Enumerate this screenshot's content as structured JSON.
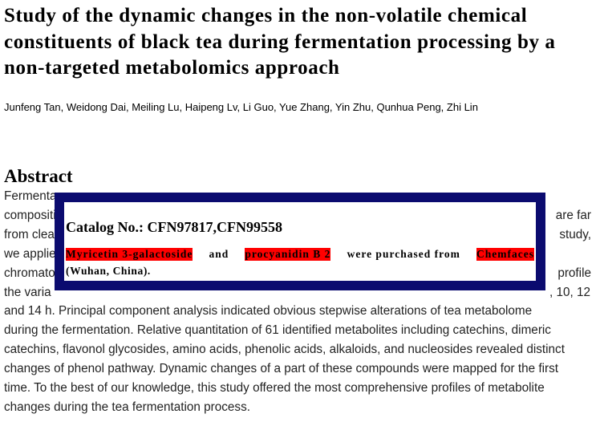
{
  "header": {
    "title_lines": [
      "Study of the dynamic changes in the non-volatile chemical",
      "constituents of black tea during fermentation processing by a",
      "non-targeted metabolomics approach"
    ],
    "authors": "Junfeng Tan, Weidong Dai, Meiling Lu, Haipeng Lv, Li Guo, Yue Zhang, Yin Zhu, Qunhua Peng, Zhi Lin"
  },
  "abstract": {
    "heading": "Abstract",
    "lines": [
      {
        "left": "Fermenta"
      },
      {
        "left": "compositi",
        "right": "are far"
      },
      {
        "left": "from clea",
        "right": "study,"
      },
      {
        "left": "we applie"
      },
      {
        "left": "chromato",
        "right": "profile"
      },
      {
        "left": "the varia",
        "right": ", 10, 12"
      },
      {
        "left": "and 14 h. Principal component analysis indicated obvious stepwise alterations of tea metabolome"
      },
      {
        "left": "during the fermentation. Relative quantitation of 61 identified metabolites including catechins, dimeric"
      },
      {
        "left": "catechins, flavonol glycosides, amino acids, phenolic acids, alkaloids, and nucleosides revealed distinct"
      },
      {
        "left": "changes of phenol pathway. Dynamic changes of a part of these compounds were mapped for the first"
      },
      {
        "left": "time. To the best of our knowledge, this study offered the most comprehensive profiles of metabolite"
      },
      {
        "left": "changes during the tea fermentation process."
      }
    ]
  },
  "overlay": {
    "catalog": "Catalog No.: CFN97817,CFN99558",
    "sentence": [
      {
        "text": "Myricetin 3-galactoside",
        "highlight": true
      },
      {
        "text": "and",
        "highlight": false
      },
      {
        "text": "procyanidin B 2",
        "highlight": true
      },
      {
        "text": "were purchased from",
        "highlight": false
      },
      {
        "text": "Chemfaces",
        "highlight": true
      }
    ],
    "sentence_end": "(Wuhan, China)."
  }
}
